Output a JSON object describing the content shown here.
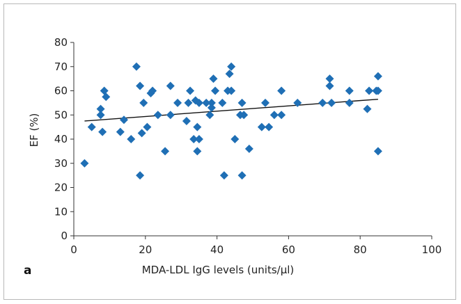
{
  "panel_label": "a",
  "colors": {
    "point": "#1f6fb5",
    "trendline": "#111111",
    "axis": "#333333",
    "frame": "#b8b8b8"
  },
  "chart_data": {
    "type": "scatter",
    "title": "",
    "xlabel": "MDA-LDL IgG levels (units/µl)",
    "ylabel": "EF (%)",
    "xlim": [
      0,
      100
    ],
    "ylim": [
      0,
      80
    ],
    "xticks": [
      0,
      20,
      40,
      60,
      80,
      100
    ],
    "yticks": [
      0,
      10,
      20,
      30,
      40,
      50,
      60,
      70,
      80
    ],
    "grid": false,
    "legend": "none",
    "marker": "diamond",
    "trendline": {
      "type": "linear",
      "x": [
        3,
        85
      ],
      "y": [
        47.5,
        56.5
      ]
    },
    "points": [
      [
        3,
        30
      ],
      [
        5,
        45
      ],
      [
        7.5,
        52.5
      ],
      [
        7.5,
        50
      ],
      [
        8,
        43
      ],
      [
        8.5,
        60
      ],
      [
        9,
        57.5
      ],
      [
        13,
        43
      ],
      [
        14,
        48
      ],
      [
        16,
        40
      ],
      [
        17.5,
        70
      ],
      [
        18.5,
        62
      ],
      [
        18.5,
        25
      ],
      [
        19,
        42.5
      ],
      [
        19.5,
        55
      ],
      [
        20.5,
        45
      ],
      [
        21.5,
        59
      ],
      [
        22,
        60
      ],
      [
        23.5,
        50
      ],
      [
        25.5,
        35
      ],
      [
        27,
        62
      ],
      [
        27,
        50
      ],
      [
        29,
        55
      ],
      [
        31.5,
        47.5
      ],
      [
        32,
        55
      ],
      [
        32.5,
        60
      ],
      [
        33.5,
        40
      ],
      [
        34,
        56
      ],
      [
        34.5,
        45
      ],
      [
        34.5,
        35
      ],
      [
        35,
        40
      ],
      [
        35,
        55
      ],
      [
        37,
        55
      ],
      [
        38,
        50
      ],
      [
        38.5,
        55
      ],
      [
        38.5,
        53
      ],
      [
        39,
        65
      ],
      [
        39.5,
        60
      ],
      [
        41.5,
        55
      ],
      [
        42,
        25
      ],
      [
        43,
        60
      ],
      [
        43.5,
        67
      ],
      [
        44,
        70
      ],
      [
        44,
        60
      ],
      [
        45,
        40
      ],
      [
        46.5,
        50
      ],
      [
        47,
        25
      ],
      [
        47,
        55
      ],
      [
        47.5,
        50
      ],
      [
        49,
        36
      ],
      [
        52.5,
        45
      ],
      [
        53.5,
        55
      ],
      [
        54.5,
        45
      ],
      [
        56,
        50
      ],
      [
        58,
        60
      ],
      [
        58,
        50
      ],
      [
        62.5,
        55
      ],
      [
        69.5,
        55
      ],
      [
        71.5,
        65
      ],
      [
        71.5,
        62
      ],
      [
        72,
        55
      ],
      [
        77,
        60
      ],
      [
        77,
        55
      ],
      [
        82,
        52.5
      ],
      [
        82.5,
        60
      ],
      [
        84.5,
        60
      ],
      [
        85,
        66
      ],
      [
        85,
        60
      ],
      [
        85,
        35
      ]
    ]
  }
}
